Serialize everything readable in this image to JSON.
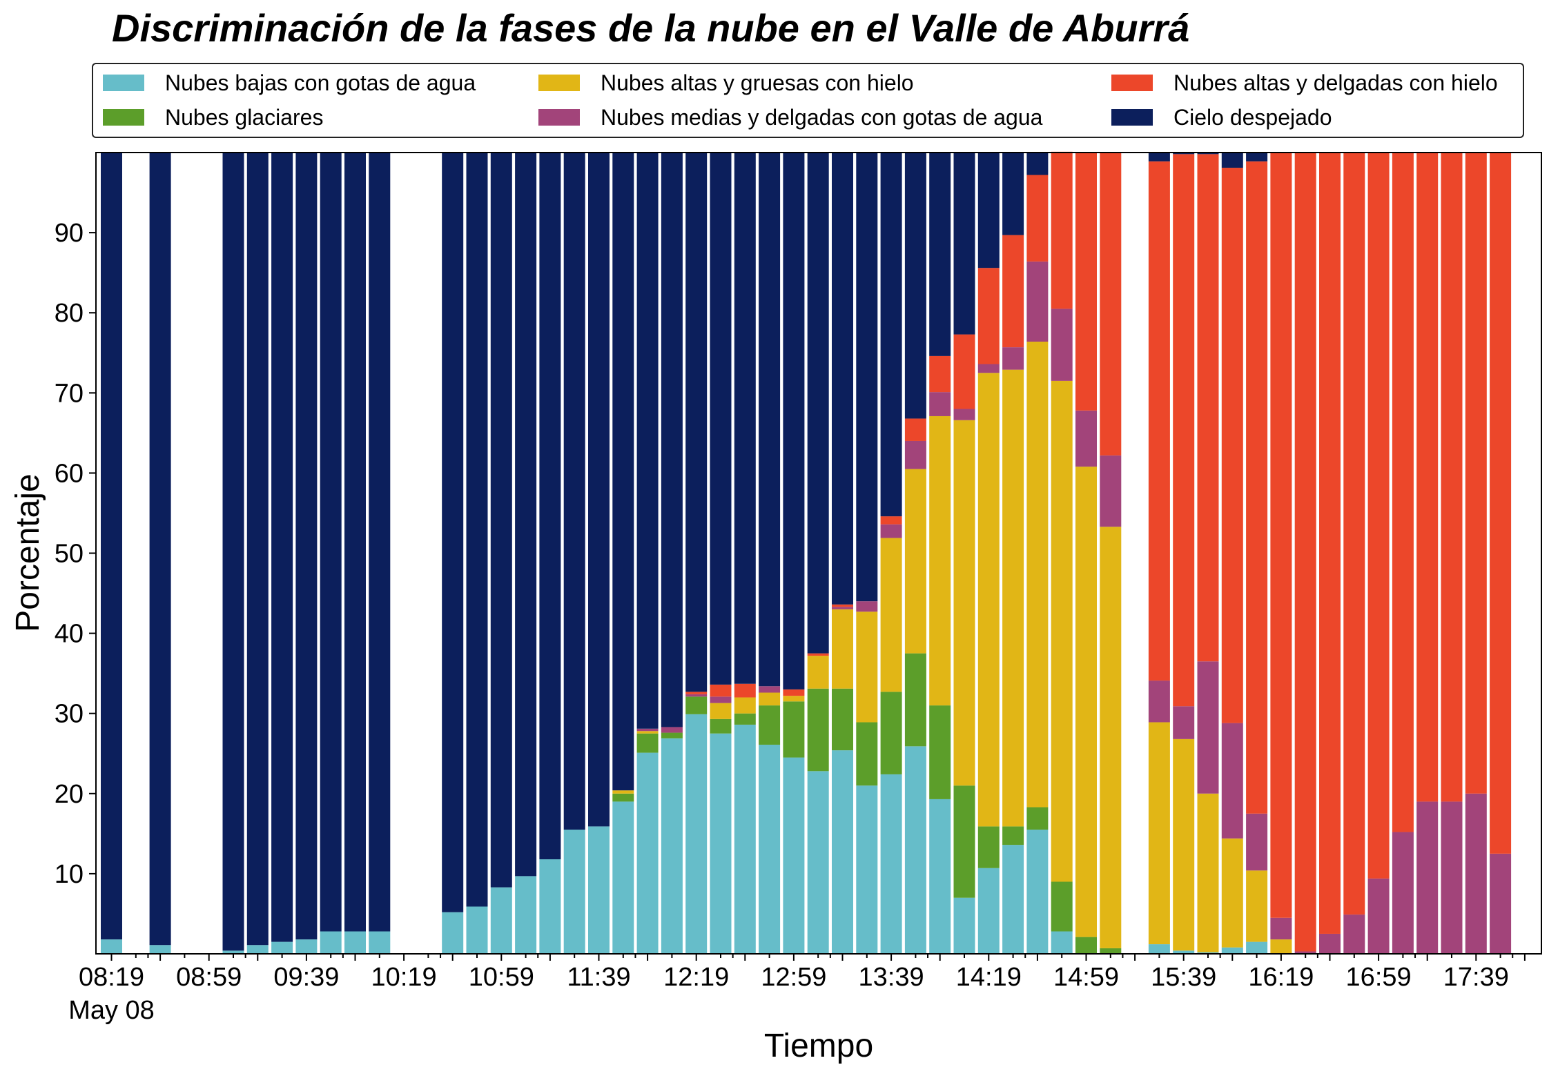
{
  "chart_data": {
    "type": "bar",
    "stacked": true,
    "title": "Discriminación de la fases de la nube en el Valle de Aburrá",
    "xlabel": "Tiempo",
    "ylabel": "Porcentaje",
    "ylim": [
      0,
      100
    ],
    "yticks": [
      10,
      20,
      30,
      40,
      50,
      60,
      70,
      80,
      90
    ],
    "xtick_labels": [
      "08:19",
      "08:59",
      "09:39",
      "10:19",
      "10:59",
      "11:39",
      "12:19",
      "12:59",
      "13:39",
      "14:19",
      "14:59",
      "15:39",
      "16:19",
      "16:59",
      "17:39"
    ],
    "xtick_sublabel": "May 08",
    "grid": false,
    "legend_position": "top",
    "slots": 58,
    "bars": [
      {
        "slot": 0,
        "values": [
          1.8,
          0,
          0,
          0,
          0,
          98.2
        ]
      },
      {
        "slot": 2,
        "values": [
          1.1,
          0,
          0,
          0,
          0,
          98.9
        ]
      },
      {
        "slot": 5,
        "values": [
          0.4,
          0,
          0,
          0,
          0,
          99.6
        ]
      },
      {
        "slot": 6,
        "values": [
          1.1,
          0,
          0,
          0,
          0,
          98.9
        ]
      },
      {
        "slot": 7,
        "values": [
          1.5,
          0,
          0,
          0,
          0,
          98.5
        ]
      },
      {
        "slot": 8,
        "values": [
          1.8,
          0,
          0,
          0,
          0,
          98.2
        ]
      },
      {
        "slot": 9,
        "values": [
          2.8,
          0,
          0,
          0,
          0,
          97.2
        ]
      },
      {
        "slot": 10,
        "values": [
          2.8,
          0,
          0,
          0,
          0,
          97.2
        ]
      },
      {
        "slot": 11,
        "values": [
          2.8,
          0,
          0,
          0,
          0,
          97.2
        ]
      },
      {
        "slot": 14,
        "values": [
          5.2,
          0,
          0,
          0,
          0,
          94.8
        ]
      },
      {
        "slot": 15,
        "values": [
          5.9,
          0,
          0,
          0,
          0,
          94.1
        ]
      },
      {
        "slot": 16,
        "values": [
          8.3,
          0,
          0,
          0,
          0,
          91.7
        ]
      },
      {
        "slot": 17,
        "values": [
          9.7,
          0,
          0,
          0,
          0,
          90.3
        ]
      },
      {
        "slot": 18,
        "values": [
          11.8,
          0,
          0,
          0,
          0,
          88.2
        ]
      },
      {
        "slot": 19,
        "values": [
          15.5,
          0,
          0,
          0,
          0,
          84.5
        ]
      },
      {
        "slot": 20,
        "values": [
          15.9,
          0,
          0,
          0,
          0,
          84.1
        ]
      },
      {
        "slot": 21,
        "values": [
          19.0,
          1.0,
          0.4,
          0,
          0,
          79.6
        ]
      },
      {
        "slot": 22,
        "values": [
          25.1,
          2.4,
          0.3,
          0.3,
          0,
          71.9
        ]
      },
      {
        "slot": 23,
        "values": [
          26.9,
          0.7,
          0,
          0.7,
          0,
          71.7
        ]
      },
      {
        "slot": 24,
        "values": [
          29.9,
          2.2,
          0,
          0.3,
          0.3,
          67.3
        ]
      },
      {
        "slot": 25,
        "values": [
          27.5,
          1.8,
          2.0,
          0.8,
          1.5,
          66.4
        ]
      },
      {
        "slot": 26,
        "values": [
          28.6,
          1.4,
          2.0,
          0,
          1.7,
          66.3
        ]
      },
      {
        "slot": 27,
        "values": [
          26.1,
          4.9,
          1.6,
          0.8,
          0,
          66.6
        ]
      },
      {
        "slot": 28,
        "values": [
          24.5,
          7.0,
          0.7,
          0,
          0.8,
          67.0
        ]
      },
      {
        "slot": 29,
        "values": [
          22.8,
          10.3,
          4.1,
          0,
          0.3,
          62.5
        ]
      },
      {
        "slot": 30,
        "values": [
          25.4,
          7.7,
          9.9,
          0.3,
          0.3,
          56.4
        ]
      },
      {
        "slot": 31,
        "values": [
          21.0,
          7.9,
          13.8,
          1.3,
          0,
          56.0
        ]
      },
      {
        "slot": 32,
        "values": [
          22.4,
          10.3,
          19.2,
          1.7,
          1.0,
          45.4
        ]
      },
      {
        "slot": 33,
        "values": [
          25.9,
          11.6,
          23.0,
          3.5,
          2.8,
          33.2
        ]
      },
      {
        "slot": 34,
        "values": [
          19.3,
          11.7,
          36.1,
          3.0,
          4.5,
          25.4
        ]
      },
      {
        "slot": 35,
        "values": [
          7.0,
          14.0,
          45.6,
          1.4,
          9.3,
          22.7
        ]
      },
      {
        "slot": 36,
        "values": [
          10.7,
          5.2,
          56.6,
          1.1,
          12.0,
          14.4
        ]
      },
      {
        "slot": 37,
        "values": [
          13.6,
          2.3,
          57.0,
          2.8,
          14.0,
          10.3
        ]
      },
      {
        "slot": 38,
        "values": [
          15.5,
          2.8,
          58.1,
          10.0,
          10.8,
          2.8
        ]
      },
      {
        "slot": 39,
        "values": [
          2.8,
          6.2,
          62.5,
          9.0,
          19.6,
          0
        ]
      },
      {
        "slot": 40,
        "values": [
          0,
          2.1,
          58.7,
          7.0,
          32.2,
          0
        ]
      },
      {
        "slot": 41,
        "values": [
          0,
          0.7,
          52.6,
          8.9,
          37.8,
          0
        ]
      },
      {
        "slot": 43,
        "values": [
          1.2,
          0,
          27.7,
          5.2,
          64.8,
          1.1
        ]
      },
      {
        "slot": 44,
        "values": [
          0.4,
          0,
          26.4,
          4.1,
          68.9,
          0.2
        ]
      },
      {
        "slot": 45,
        "values": [
          0.2,
          0,
          19.8,
          16.5,
          63.3,
          0.2
        ]
      },
      {
        "slot": 46,
        "values": [
          0.8,
          0,
          13.6,
          14.4,
          69.3,
          1.9
        ]
      },
      {
        "slot": 47,
        "values": [
          1.5,
          0,
          8.9,
          7.1,
          81.4,
          1.1
        ]
      },
      {
        "slot": 48,
        "values": [
          0,
          0,
          1.8,
          2.7,
          95.5,
          0
        ]
      },
      {
        "slot": 49,
        "values": [
          0,
          0,
          0,
          0.3,
          99.7,
          0
        ]
      },
      {
        "slot": 50,
        "values": [
          0,
          0,
          0,
          2.5,
          97.5,
          0
        ]
      },
      {
        "slot": 51,
        "values": [
          0,
          0,
          0,
          4.9,
          95.1,
          0
        ]
      },
      {
        "slot": 52,
        "values": [
          0,
          0,
          0,
          9.4,
          90.6,
          0
        ]
      },
      {
        "slot": 53,
        "values": [
          0,
          0,
          0,
          15.2,
          84.8,
          0
        ]
      },
      {
        "slot": 54,
        "values": [
          0,
          0,
          0,
          19.0,
          81.0,
          0
        ]
      },
      {
        "slot": 55,
        "values": [
          0,
          0,
          0,
          19.0,
          81.0,
          0
        ]
      },
      {
        "slot": 56,
        "values": [
          0,
          0,
          0,
          20.0,
          80.0,
          0
        ]
      },
      {
        "slot": 57,
        "values": [
          0,
          0,
          0,
          12.5,
          87.5,
          0
        ]
      }
    ],
    "series": [
      {
        "name": "Nubes bajas con gotas de agua",
        "color": "#66bdc9"
      },
      {
        "name": "Nubes glaciares",
        "color": "#5c9e2a"
      },
      {
        "name": "Nubes altas y gruesas con hielo",
        "color": "#e1b616"
      },
      {
        "name": "Nubes medias y delgadas con gotas de agua",
        "color": "#a2447a"
      },
      {
        "name": "Nubes altas y delgadas con hielo",
        "color": "#ec472a"
      },
      {
        "name": "Cielo despejado",
        "color": "#0c1f5c"
      }
    ]
  }
}
